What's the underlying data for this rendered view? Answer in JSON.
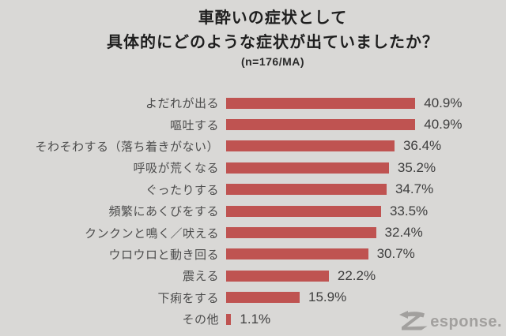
{
  "header": {
    "title_line1": "車酔いの症状として",
    "title_line2": "具体的にどのような症状が出ていましたか？",
    "sample_note": "(n=176/MA)"
  },
  "chart_data": {
    "type": "bar",
    "orientation": "horizontal",
    "title": "車酔いの症状として具体的にどのような症状が出ていましたか？",
    "sample_size_note": "(n=176/MA)",
    "categories": [
      "よだれが出る",
      "嘔吐する",
      "そわそわする（落ち着きがない）",
      "呼吸が荒くなる",
      "ぐったりする",
      "頻繁にあくびをする",
      "クンクンと鳴く／吠える",
      "ウロウロと動き回る",
      "震える",
      "下痢をする",
      "その他"
    ],
    "values": [
      40.9,
      40.9,
      36.4,
      35.2,
      34.7,
      33.5,
      32.4,
      30.7,
      22.2,
      15.9,
      1.1
    ],
    "value_suffix": "%",
    "xlim": [
      0,
      45
    ],
    "grid": false,
    "legend": false,
    "bar_color": "#bf5351",
    "background_color": "#d9d8d6"
  },
  "footer": {
    "logo_full": "Response.",
    "logo_suffix": "esponse."
  }
}
